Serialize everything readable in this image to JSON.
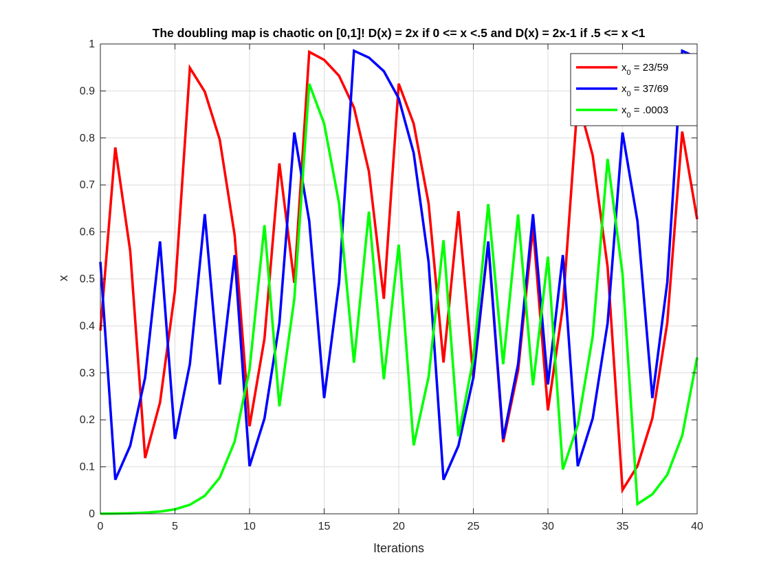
{
  "chart_data": {
    "type": "line",
    "title": "The doubling map is chaotic on [0,1]! D(x) = 2x if 0 <= x <.5 and D(x) = 2x-1 if .5 <= x <1",
    "xlabel": "Iterations",
    "ylabel": "x",
    "xlim": [
      0,
      40
    ],
    "ylim": [
      0,
      1
    ],
    "xticks": [
      "0",
      "5",
      "10",
      "15",
      "20",
      "25",
      "30",
      "35",
      "40"
    ],
    "yticks": [
      "0",
      "0.1",
      "0.2",
      "0.3",
      "0.4",
      "0.5",
      "0.6",
      "0.7",
      "0.8",
      "0.9",
      "1"
    ],
    "grid": true,
    "legend_position": "top-right",
    "x": [
      0,
      1,
      2,
      3,
      4,
      5,
      6,
      7,
      8,
      9,
      10,
      11,
      12,
      13,
      14,
      15,
      16,
      17,
      18,
      19,
      20,
      21,
      22,
      23,
      24,
      25,
      26,
      27,
      28,
      29,
      30,
      31,
      32,
      33,
      34,
      35,
      36,
      37,
      38,
      39,
      40
    ],
    "series": [
      {
        "legend_main": "x",
        "legend_sub": "0",
        "legend_rest": " = 23/59",
        "color": "#ff0000",
        "values": [
          0.3898,
          0.7797,
          0.5593,
          0.1186,
          0.2373,
          0.4746,
          0.9492,
          0.8983,
          0.7966,
          0.5932,
          0.1864,
          0.3729,
          0.7458,
          0.4915,
          0.9831,
          0.9661,
          0.9322,
          0.8644,
          0.7288,
          0.4576,
          0.9153,
          0.8305,
          0.661,
          0.322,
          0.6441,
          0.2881,
          0.5763,
          0.1525,
          0.3051,
          0.6102,
          0.2203,
          0.4407,
          0.8814,
          0.7627,
          0.5254,
          0.0508,
          0.1017,
          0.2034,
          0.4068,
          0.8136,
          0.6271
        ]
      },
      {
        "legend_main": "x",
        "legend_sub": "0",
        "legend_rest": " = 37/69",
        "color": "#0000ff",
        "values": [
          0.5362,
          0.0725,
          0.1449,
          0.2899,
          0.5797,
          0.1594,
          0.3188,
          0.6377,
          0.2754,
          0.5507,
          0.1014,
          0.2029,
          0.4058,
          0.8116,
          0.6232,
          0.2464,
          0.4928,
          0.9855,
          0.971,
          0.942,
          0.8841,
          0.7681,
          0.5362,
          0.0725,
          0.1449,
          0.2899,
          0.5797,
          0.1594,
          0.3188,
          0.6377,
          0.2754,
          0.5507,
          0.1014,
          0.2029,
          0.4058,
          0.8116,
          0.6232,
          0.2464,
          0.4928,
          0.9855,
          0.971
        ]
      },
      {
        "legend_main": "x",
        "legend_sub": "0",
        "legend_rest": " = .0003",
        "color": "#00ff00",
        "values": [
          0.0003,
          0.0006,
          0.0012,
          0.0024,
          0.0048,
          0.0096,
          0.0192,
          0.0384,
          0.0768,
          0.1536,
          0.3072,
          0.6144,
          0.2288,
          0.4576,
          0.9152,
          0.8304,
          0.6608,
          0.3216,
          0.6432,
          0.2864,
          0.5728,
          0.1456,
          0.2912,
          0.5824,
          0.1648,
          0.3296,
          0.6592,
          0.3184,
          0.6368,
          0.2736,
          0.5472,
          0.0944,
          0.1888,
          0.3776,
          0.7552,
          0.5104,
          0.0208,
          0.0416,
          0.0832,
          0.1664,
          0.3328
        ]
      }
    ]
  }
}
